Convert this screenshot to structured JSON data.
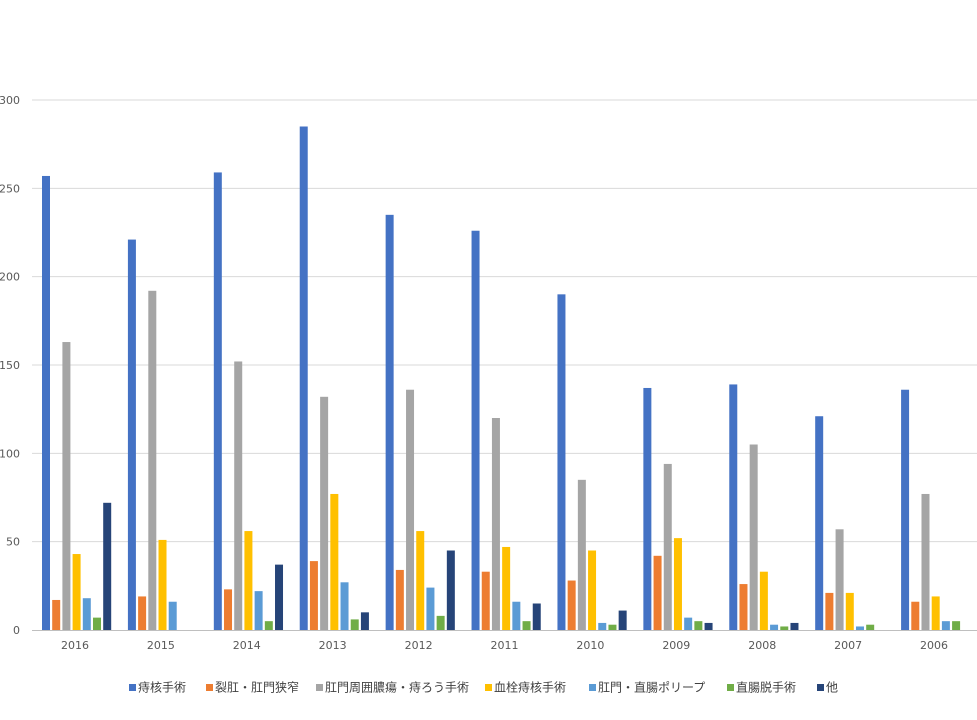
{
  "chart_data": {
    "type": "bar",
    "title": "",
    "xlabel": "",
    "ylabel": "",
    "ylim": [
      0,
      300
    ],
    "yticks": [
      0,
      50,
      100,
      150,
      200,
      250,
      300
    ],
    "grid": true,
    "legend_position": "bottom",
    "categories": [
      "2016",
      "2015",
      "2014",
      "2013",
      "2012",
      "2011",
      "2010",
      "2009",
      "2008",
      "2007",
      "2006"
    ],
    "series": [
      {
        "name": "痔核手術",
        "color": "#4472C4",
        "values": [
          257,
          221,
          259,
          285,
          235,
          226,
          190,
          137,
          139,
          121,
          136
        ]
      },
      {
        "name": "裂肛・肛門狭窄",
        "color": "#ED7D31",
        "values": [
          17,
          19,
          23,
          39,
          34,
          33,
          28,
          42,
          26,
          21,
          16
        ]
      },
      {
        "name": "肛門周囲膿瘍・痔ろう手術",
        "color": "#A5A5A5",
        "values": [
          163,
          192,
          152,
          132,
          136,
          120,
          85,
          94,
          105,
          57,
          77
        ]
      },
      {
        "name": "血栓痔核手術",
        "color": "#FFC000",
        "values": [
          43,
          51,
          56,
          77,
          56,
          47,
          45,
          52,
          33,
          21,
          19
        ]
      },
      {
        "name": "肛門・直腸ポリープ",
        "color": "#5B9BD5",
        "values": [
          18,
          16,
          22,
          27,
          24,
          16,
          4,
          7,
          3,
          2,
          5
        ]
      },
      {
        "name": "直腸脱手術",
        "color": "#70AD47",
        "values": [
          7,
          0,
          5,
          6,
          8,
          5,
          3,
          5,
          2,
          3,
          5
        ]
      },
      {
        "name": "他",
        "color": "#264478",
        "values": [
          72,
          0,
          37,
          10,
          45,
          15,
          11,
          4,
          4,
          0,
          0
        ]
      }
    ]
  }
}
